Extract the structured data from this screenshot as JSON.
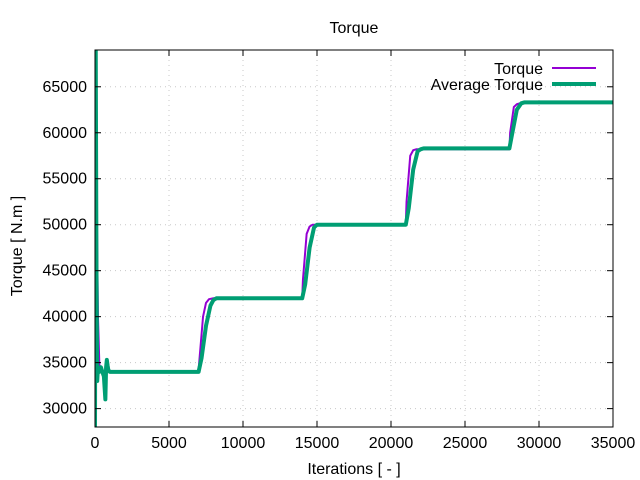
{
  "chart_data": {
    "type": "line",
    "title": "Torque",
    "xlabel": "Iterations [ - ]",
    "ylabel": "Torque [ N.m ]",
    "xlim": [
      0,
      35000
    ],
    "ylim": [
      28000,
      69000
    ],
    "xticks": [
      0,
      5000,
      10000,
      15000,
      20000,
      25000,
      30000,
      35000
    ],
    "yticks": [
      30000,
      35000,
      40000,
      45000,
      50000,
      55000,
      60000,
      65000
    ],
    "grid": true,
    "legend_position": "top-right",
    "series": [
      {
        "name": "Torque",
        "color": "#9400d3",
        "x": [
          0,
          60,
          120,
          200,
          300,
          450,
          700,
          900,
          1200,
          2000,
          6990,
          7050,
          7300,
          7500,
          7700,
          8000,
          9000,
          14000,
          14050,
          14300,
          14500,
          14700,
          15000,
          16000,
          21000,
          21050,
          21300,
          21500,
          21700,
          22000,
          23000,
          28000,
          28050,
          28300,
          28500,
          28700,
          29000,
          30000,
          35000
        ],
        "values": [
          29000,
          69000,
          52000,
          40000,
          34500,
          34200,
          34000,
          34200,
          34000,
          34000,
          34000,
          35200,
          40000,
          41500,
          41900,
          42000,
          42000,
          42000,
          44000,
          49000,
          49800,
          50000,
          50000,
          50000,
          50000,
          52500,
          57500,
          58100,
          58200,
          58200,
          58200,
          58200,
          60000,
          62800,
          63100,
          63200,
          63300,
          63300,
          63300
        ]
      },
      {
        "name": "Average Torque",
        "color": "#009e73",
        "x": [
          0,
          50,
          100,
          150,
          200,
          300,
          400,
          500,
          600,
          700,
          750,
          800,
          850,
          900,
          1000,
          1200,
          1500,
          2000,
          7000,
          7200,
          7500,
          7800,
          8000,
          8200,
          9000,
          14000,
          14200,
          14500,
          14800,
          15000,
          15200,
          16000,
          21000,
          21200,
          21500,
          21800,
          22000,
          22200,
          23000,
          28000,
          28200,
          28500,
          28800,
          29000,
          29200,
          30000,
          35000
        ],
        "values": [
          28000,
          69000,
          45000,
          33000,
          34500,
          34000,
          34500,
          34000,
          33500,
          31000,
          34500,
          35300,
          34700,
          34200,
          34000,
          34000,
          34000,
          34000,
          34000,
          35500,
          39000,
          41200,
          41800,
          42000,
          42000,
          42000,
          43500,
          47500,
          49700,
          50000,
          50000,
          50000,
          50000,
          51800,
          56000,
          58000,
          58200,
          58300,
          58300,
          58300,
          60000,
          62500,
          63200,
          63300,
          63300,
          63300,
          63300
        ]
      }
    ]
  }
}
